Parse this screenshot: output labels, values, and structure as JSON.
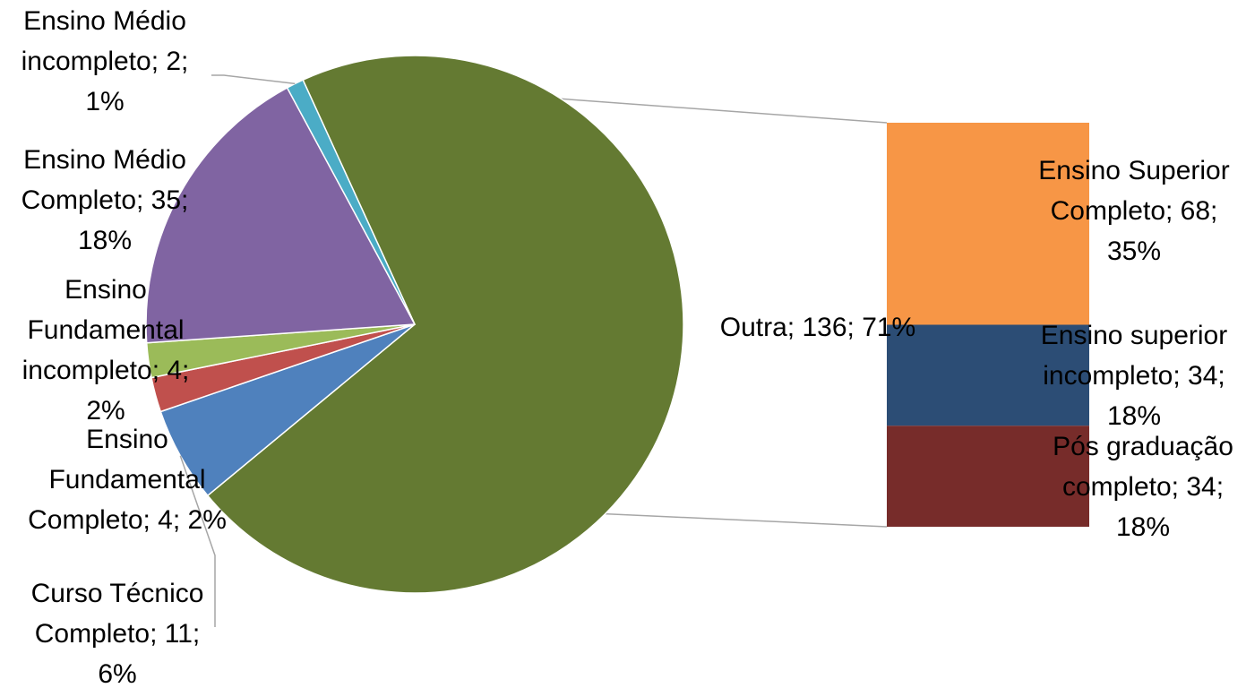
{
  "chart_data": {
    "type": "pie",
    "variant": "bar-of-pie",
    "title": "",
    "label_format": "category; value; percent",
    "pie_slices": [
      {
        "category": "Outra",
        "value": 136,
        "percent": "71%",
        "color": "#647a32"
      },
      {
        "category": "Curso Técnico Completo",
        "value": 11,
        "percent": "6%",
        "color": "#4f81bd"
      },
      {
        "category": "Ensino Fundamental Completo",
        "value": 4,
        "percent": "2%",
        "color": "#c0504d"
      },
      {
        "category": "Ensino Fundamental incompleto",
        "value": 4,
        "percent": "2%",
        "color": "#9bbb59"
      },
      {
        "category": "Ensino Médio Completo",
        "value": 35,
        "percent": "18%",
        "color": "#8064a2"
      },
      {
        "category": "Ensino Médio incompleto",
        "value": 2,
        "percent": "1%",
        "color": "#4bacc6"
      }
    ],
    "bar_segments": [
      {
        "category": "Ensino Superior Completo",
        "value": 68,
        "percent": "35%",
        "color": "#f79646"
      },
      {
        "category": "Ensino superior incompleto",
        "value": 34,
        "percent": "18%",
        "color": "#2c4d75"
      },
      {
        "category": "Pós graduação completo",
        "value": 34,
        "percent": "18%",
        "color": "#772c2a"
      }
    ],
    "labels": [
      {
        "lines": [
          "Outra; 136; 71%"
        ]
      },
      {
        "lines": [
          "Curso Técnico",
          "Completo; 11;",
          "6%"
        ]
      },
      {
        "lines": [
          "Ensino",
          "Fundamental",
          "Completo; 4; 2%"
        ]
      },
      {
        "lines": [
          "Ensino",
          "Fundamental",
          "incompleto; 4;",
          "2%"
        ]
      },
      {
        "lines": [
          "Ensino Médio",
          "Completo; 35;",
          "18%"
        ]
      },
      {
        "lines": [
          "Ensino Médio",
          "incompleto; 2;",
          "1%"
        ]
      },
      {
        "lines": [
          "Ensino Superior",
          "Completo; 68;",
          "35%"
        ]
      },
      {
        "lines": [
          "Ensino superior",
          "incompleto; 34;",
          "18%"
        ]
      },
      {
        "lines": [
          "Pós graduação",
          "completo; 34;",
          "18%"
        ]
      }
    ]
  }
}
